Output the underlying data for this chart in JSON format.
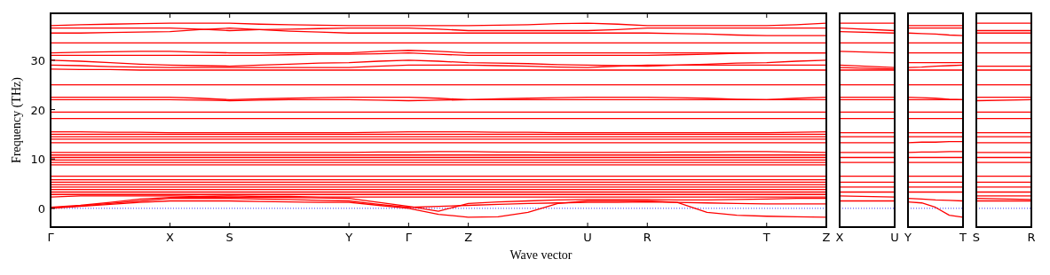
{
  "chart_data": [
    {
      "type": "line",
      "xlabel": "Wave vector",
      "ylabel": "Frequency (THz)",
      "ylim": [
        -3.8,
        39.5
      ],
      "yticks": [
        0,
        10,
        20,
        30
      ],
      "categories": [
        "Γ",
        null,
        null,
        null,
        "X",
        null,
        "S",
        null,
        null,
        null,
        "Y",
        null,
        "Γ",
        null,
        "Z",
        null,
        null,
        null,
        "U",
        null,
        "R",
        null,
        null,
        null,
        "T",
        null,
        "Z"
      ],
      "ref_lines": [
        {
          "axis": "y",
          "value": 0,
          "color": "#0000ff",
          "line_style": "dotted"
        }
      ],
      "series": [
        {
          "color": "#ff0000",
          "values": [
            37,
            37.2,
            37.3,
            37.4,
            37.5,
            37.5,
            37.5,
            37.3,
            37.2,
            37.1,
            37,
            37,
            37,
            37,
            37,
            37.1,
            37.2,
            37.4,
            37.5,
            37.3,
            37,
            37,
            37,
            37,
            37,
            37.2,
            37.5
          ]
        },
        {
          "color": "#ff0000",
          "values": [
            36.5,
            36.5,
            36.5,
            36.5,
            36.5,
            36.3,
            36,
            36.2,
            36.3,
            36.4,
            36.5,
            36.5,
            36.5,
            36.3,
            36,
            36,
            36,
            36,
            36,
            36.2,
            36.5,
            36.5,
            36.5,
            36.5,
            36.5,
            36.5,
            36.5
          ]
        },
        {
          "color": "#ff0000",
          "values": [
            35.5,
            35.5,
            35.6,
            35.7,
            35.8,
            36.2,
            36.5,
            36.2,
            35.9,
            35.7,
            35.5,
            35.5,
            35.5,
            35.5,
            35.5,
            35.5,
            35.5,
            35.5,
            35.5,
            35.5,
            35.5,
            35.4,
            35.3,
            35.1,
            35,
            35,
            35
          ]
        },
        {
          "color": "#ff0000",
          "values": [
            33.5,
            33.5,
            33.5,
            33.5,
            33.5,
            33.5,
            33.5,
            33.5,
            33.5,
            33.5,
            33.5,
            33.5,
            33.5,
            33.5,
            33.5,
            33.5,
            33.5,
            33.5,
            33.5,
            33.5,
            33.5,
            33.5,
            33.5,
            33.5,
            33.5,
            33.5,
            33.5
          ]
        },
        {
          "color": "#ff0000",
          "values": [
            31.5,
            31.6,
            31.7,
            31.8,
            31.8,
            31.6,
            31.5,
            31.5,
            31.5,
            31.5,
            31.5,
            31.8,
            32,
            31.8,
            31.5,
            31.5,
            31.5,
            31.5,
            31.5,
            31.5,
            31.5,
            31.5,
            31.5,
            31.5,
            31.5,
            31.5,
            31.5
          ]
        },
        {
          "color": "#ff0000",
          "values": [
            31,
            31,
            31,
            31,
            31,
            31,
            31,
            31,
            31.1,
            31.2,
            31.2,
            31.3,
            31.5,
            31.2,
            31,
            31,
            31,
            31,
            31,
            31,
            31,
            31.1,
            31.2,
            31.4,
            31.5,
            31.5,
            31.5
          ]
        },
        {
          "color": "#ff0000",
          "values": [
            30,
            29.8,
            29.5,
            29.2,
            29,
            28.9,
            28.8,
            29,
            29.2,
            29.4,
            29.5,
            29.8,
            30,
            29.8,
            29.5,
            29.4,
            29.3,
            29.1,
            29,
            28.9,
            28.8,
            29,
            29.2,
            29.4,
            29.5,
            29.8,
            30
          ]
        },
        {
          "color": "#ff0000",
          "values": [
            29,
            28.9,
            28.7,
            28.6,
            28.5,
            28.5,
            28.5,
            28.5,
            28.5,
            28.5,
            28.5,
            28.8,
            29,
            29,
            29,
            28.9,
            28.8,
            28.6,
            28.5,
            28.8,
            29,
            29,
            29,
            29,
            29,
            29,
            29
          ]
        },
        {
          "color": "#ff0000",
          "values": [
            28.2,
            28.1,
            28.1,
            28,
            28,
            28,
            28,
            28,
            28,
            28,
            28,
            28,
            28,
            28,
            28,
            28,
            28,
            28,
            28,
            28,
            28,
            28,
            28,
            28,
            28,
            28,
            28
          ]
        },
        {
          "color": "#ff0000",
          "values": [
            25,
            25,
            25,
            25,
            25,
            25,
            25,
            25,
            25,
            25,
            25,
            25,
            25,
            25,
            25,
            25,
            25,
            25,
            25,
            25,
            25,
            25,
            25,
            25,
            25,
            25,
            25
          ]
        },
        {
          "color": "#ff0000",
          "values": [
            22.5,
            22.5,
            22.5,
            22.5,
            22.5,
            22.3,
            22,
            22.2,
            22.3,
            22.4,
            22.5,
            22.5,
            22.5,
            22.3,
            22,
            22.2,
            22.3,
            22.4,
            22.5,
            22.5,
            22.5,
            22.4,
            22.3,
            22.1,
            22,
            22.3,
            22.5
          ]
        },
        {
          "color": "#ff0000",
          "values": [
            22,
            22,
            22,
            22,
            22,
            21.9,
            21.8,
            21.9,
            22,
            22,
            22,
            21.9,
            21.8,
            21.9,
            22,
            22,
            22,
            22,
            22,
            22,
            22,
            22,
            22,
            22,
            22,
            22,
            22
          ]
        },
        {
          "color": "#ff0000",
          "values": [
            19.5,
            19.5,
            19.5,
            19.5,
            19.5,
            19.5,
            19.5,
            19.5,
            19.5,
            19.5,
            19.5,
            19.5,
            19.5,
            19.5,
            19.5,
            19.5,
            19.5,
            19.5,
            19.5,
            19.5,
            19.5,
            19.5,
            19.5,
            19.5,
            19.5,
            19.5,
            19.5
          ]
        },
        {
          "color": "#ff0000",
          "values": [
            18.2,
            18.2,
            18.2,
            18.2,
            18.2,
            18.2,
            18.2,
            18.2,
            18.2,
            18.2,
            18.2,
            18.2,
            18.2,
            18.2,
            18.2,
            18.2,
            18.2,
            18.2,
            18.2,
            18.2,
            18.2,
            18.2,
            18.2,
            18.2,
            18.2,
            18.2,
            18.2
          ]
        },
        {
          "color": "#ff0000",
          "values": [
            15.5,
            15.5,
            15.4,
            15.4,
            15.3,
            15.3,
            15.3,
            15.3,
            15.3,
            15.3,
            15.3,
            15.4,
            15.5,
            15.5,
            15.5,
            15.4,
            15.4,
            15.3,
            15.3,
            15.3,
            15.3,
            15.3,
            15.3,
            15.3,
            15.3,
            15.4,
            15.5
          ]
        },
        {
          "color": "#ff0000",
          "values": [
            15,
            15,
            15,
            15,
            15,
            15,
            15,
            15,
            15,
            15,
            15,
            15,
            15,
            15,
            15,
            15,
            15,
            15,
            15,
            15,
            15,
            15,
            15,
            15,
            15,
            15,
            15
          ]
        },
        {
          "color": "#ff0000",
          "values": [
            14.5,
            14.5,
            14.5,
            14.5,
            14.5,
            14.5,
            14.5,
            14.5,
            14.5,
            14.5,
            14.5,
            14.5,
            14.5,
            14.5,
            14.5,
            14.5,
            14.5,
            14.5,
            14.5,
            14.5,
            14.5,
            14.5,
            14.5,
            14.5,
            14.5,
            14.5,
            14.5
          ]
        },
        {
          "color": "#ff0000",
          "values": [
            14,
            14,
            14,
            14,
            14,
            14,
            14,
            14,
            14,
            14,
            14,
            14,
            14,
            14,
            14,
            14,
            14,
            14,
            14,
            14,
            14,
            14,
            14,
            14,
            14,
            14,
            14
          ]
        },
        {
          "color": "#ff0000",
          "values": [
            13.3,
            13.3,
            13.3,
            13.3,
            13.3,
            13.3,
            13.3,
            13.3,
            13.3,
            13.3,
            13.3,
            13.3,
            13.3,
            13.3,
            13.3,
            13.3,
            13.3,
            13.3,
            13.3,
            13.3,
            13.3,
            13.3,
            13.3,
            13.3,
            13.3,
            13.3,
            13.3
          ]
        },
        {
          "color": "#ff0000",
          "values": [
            11.3,
            11.3,
            11.3,
            11.3,
            11.3,
            11.3,
            11.3,
            11.3,
            11.3,
            11.3,
            11.3,
            11.4,
            11.4,
            11.5,
            11.5,
            11.4,
            11.4,
            11.3,
            11.3,
            11.3,
            11.3,
            11.4,
            11.4,
            11.5,
            11.5,
            11.4,
            11.3
          ]
        },
        {
          "color": "#ff0000",
          "values": [
            10.8,
            10.8,
            10.8,
            10.8,
            10.8,
            10.8,
            10.8,
            10.8,
            10.8,
            10.8,
            10.8,
            10.8,
            10.8,
            10.8,
            10.8,
            10.8,
            10.8,
            10.8,
            10.8,
            10.8,
            10.8,
            10.8,
            10.8,
            10.8,
            10.8,
            10.8,
            10.8
          ]
        },
        {
          "color": "#ff0000",
          "values": [
            10.3,
            10.3,
            10.3,
            10.3,
            10.3,
            10.3,
            10.3,
            10.3,
            10.3,
            10.3,
            10.3,
            10.3,
            10.3,
            10.3,
            10.3,
            10.3,
            10.3,
            10.3,
            10.3,
            10.3,
            10.3,
            10.3,
            10.3,
            10.3,
            10.3,
            10.3,
            10.3
          ]
        },
        {
          "color": "#ff0000",
          "values": [
            9.8,
            9.8,
            9.8,
            9.8,
            9.8,
            9.8,
            9.8,
            9.8,
            9.8,
            9.8,
            9.8,
            9.8,
            9.8,
            9.8,
            9.8,
            9.8,
            9.8,
            9.8,
            9.8,
            9.8,
            9.8,
            9.8,
            9.8,
            9.8,
            9.8,
            9.8,
            9.8
          ]
        },
        {
          "color": "#ff0000",
          "values": [
            9.3,
            9.3,
            9.3,
            9.3,
            9.3,
            9.3,
            9.3,
            9.3,
            9.3,
            9.3,
            9.3,
            9.3,
            9.3,
            9.3,
            9.3,
            9.3,
            9.3,
            9.3,
            9.3,
            9.3,
            9.3,
            9.3,
            9.3,
            9.3,
            9.3,
            9.3,
            9.3
          ]
        },
        {
          "color": "#ff0000",
          "values": [
            8.8,
            8.8,
            8.8,
            8.8,
            8.8,
            8.8,
            8.8,
            8.8,
            8.8,
            8.8,
            8.8,
            8.8,
            8.8,
            8.8,
            8.8,
            8.8,
            8.8,
            8.8,
            8.8,
            8.8,
            8.8,
            8.8,
            8.8,
            8.8,
            8.8,
            8.8,
            8.8
          ]
        },
        {
          "color": "#ff0000",
          "values": [
            6.5,
            6.5,
            6.5,
            6.5,
            6.5,
            6.5,
            6.5,
            6.5,
            6.5,
            6.5,
            6.5,
            6.5,
            6.5,
            6.5,
            6.5,
            6.5,
            6.5,
            6.5,
            6.5,
            6.5,
            6.5,
            6.5,
            6.5,
            6.5,
            6.5,
            6.5,
            6.5
          ]
        },
        {
          "color": "#ff0000",
          "values": [
            5.8,
            5.8,
            5.8,
            5.8,
            5.8,
            5.8,
            5.8,
            5.8,
            5.8,
            5.8,
            5.8,
            5.8,
            5.8,
            5.8,
            5.8,
            5.8,
            5.8,
            5.8,
            5.8,
            5.8,
            5.8,
            5.8,
            5.8,
            5.8,
            5.8,
            5.8,
            5.8
          ]
        },
        {
          "color": "#ff0000",
          "values": [
            5.3,
            5.3,
            5.3,
            5.3,
            5.3,
            5.3,
            5.3,
            5.3,
            5.3,
            5.3,
            5.3,
            5.3,
            5.3,
            5.3,
            5.3,
            5.3,
            5.3,
            5.3,
            5.3,
            5.3,
            5.3,
            5.3,
            5.3,
            5.3,
            5.3,
            5.3,
            5.3
          ]
        },
        {
          "color": "#ff0000",
          "values": [
            4.8,
            4.8,
            4.8,
            4.8,
            4.8,
            4.8,
            4.8,
            4.8,
            4.8,
            4.8,
            4.8,
            4.8,
            4.8,
            4.8,
            4.8,
            4.8,
            4.8,
            4.8,
            4.8,
            4.8,
            4.8,
            4.8,
            4.8,
            4.8,
            4.8,
            4.8,
            4.8
          ]
        },
        {
          "color": "#ff0000",
          "values": [
            4.3,
            4.3,
            4.3,
            4.3,
            4.3,
            4.3,
            4.3,
            4.3,
            4.3,
            4.3,
            4.3,
            4.3,
            4.3,
            4.3,
            4.3,
            4.3,
            4.3,
            4.3,
            4.3,
            4.3,
            4.3,
            4.3,
            4.3,
            4.3,
            4.3,
            4.3,
            4.3
          ]
        },
        {
          "color": "#ff0000",
          "values": [
            3.8,
            3.8,
            3.8,
            3.8,
            3.8,
            3.8,
            3.8,
            3.8,
            3.8,
            3.8,
            3.8,
            3.8,
            3.8,
            3.8,
            3.8,
            3.8,
            3.8,
            3.8,
            3.8,
            3.8,
            3.8,
            3.8,
            3.8,
            3.8,
            3.8,
            3.8,
            3.8
          ]
        },
        {
          "color": "#ff0000",
          "values": [
            3.3,
            3.3,
            3.3,
            3.3,
            3.3,
            3.3,
            3.3,
            3.3,
            3.3,
            3.3,
            3.3,
            3.3,
            3.3,
            3.3,
            3.3,
            3.3,
            3.3,
            3.3,
            3.3,
            3.3,
            3.3,
            3.3,
            3.3,
            3.3,
            3.3,
            3.3,
            3.3
          ]
        },
        {
          "color": "#ff0000",
          "values": [
            2.8,
            2.8,
            2.8,
            2.8,
            2.8,
            2.8,
            2.8,
            2.8,
            2.8,
            2.8,
            2.8,
            2.8,
            2.8,
            2.8,
            2.8,
            2.8,
            2.8,
            2.8,
            2.8,
            2.8,
            2.8,
            2.8,
            2.8,
            2.8,
            2.8,
            2.8,
            2.8
          ]
        },
        {
          "color": "#ff0000",
          "values": [
            0,
            0.4,
            0.8,
            1.2,
            1.5,
            1.5,
            1.5,
            1.4,
            1.3,
            1.2,
            1.2,
            0.6,
            0,
            -1.2,
            -1.8,
            -1.7,
            -0.8,
            1,
            1.5,
            1.5,
            1.5,
            1.2,
            -0.8,
            -1.4,
            -1.6,
            -1.7,
            -1.8
          ]
        },
        {
          "color": "#ff0000",
          "values": [
            2.3,
            2.5,
            2.5,
            2.5,
            2.5,
            2.4,
            2.5,
            2.4,
            2.4,
            2.3,
            2.3,
            2.3,
            2.3,
            2.3,
            2.3,
            2.3,
            2.3,
            2.3,
            2.3,
            2.3,
            2.3,
            2.3,
            2.3,
            2.3,
            2.3,
            2.3,
            2.3
          ]
        },
        {
          "color": "#ff0000",
          "values": [
            0.1,
            0.5,
            1,
            1.5,
            2,
            2,
            2,
            1.9,
            1.8,
            1.6,
            1.5,
            0.8,
            0.2,
            0.4,
            0.6,
            0.8,
            1,
            1.1,
            1.2,
            1.2,
            1.3,
            1.2,
            1.1,
            1,
            0.9,
            0.9,
            0.9
          ]
        },
        {
          "color": "#ff0000",
          "values": [
            0.2,
            0.6,
            1.2,
            1.9,
            2.2,
            2.2,
            2.2,
            2.2,
            2.2,
            2.1,
            2,
            1.2,
            0.4,
            -0.6,
            1,
            1.3,
            1.5,
            1.7,
            1.8,
            1.8,
            1.8,
            1.7,
            1.7,
            1.8,
            1.9,
            2,
            2
          ]
        }
      ]
    },
    {
      "type": "line",
      "ylim": [
        -3.8,
        39.5
      ],
      "tick_labels": "x",
      "categories": [
        "X",
        "U"
      ],
      "ref_lines": [
        {
          "axis": "y",
          "value": 0,
          "color": "#0000ff",
          "line_style": "dotted"
        }
      ],
      "series": [
        {
          "color": "#ff0000",
          "values": [
            37.5,
            37.5
          ]
        },
        {
          "color": "#ff0000",
          "values": [
            36.5,
            36
          ]
        },
        {
          "color": "#ff0000",
          "values": [
            35.8,
            35.5
          ]
        },
        {
          "color": "#ff0000",
          "values": [
            33.5,
            33.5
          ]
        },
        {
          "color": "#ff0000",
          "values": [
            31.8,
            31.5
          ]
        },
        {
          "color": "#ff0000",
          "values": [
            29,
            28.5
          ]
        },
        {
          "color": "#ff0000",
          "values": [
            28.5,
            28.2
          ]
        },
        {
          "color": "#ff0000",
          "values": [
            28,
            28
          ]
        },
        {
          "color": "#ff0000",
          "values": [
            25,
            25
          ]
        },
        {
          "color": "#ff0000",
          "values": [
            22.5,
            22.5
          ]
        },
        {
          "color": "#ff0000",
          "values": [
            22,
            22
          ]
        },
        {
          "color": "#ff0000",
          "values": [
            19.5,
            19.5
          ]
        },
        {
          "color": "#ff0000",
          "values": [
            18.2,
            18.2
          ]
        },
        {
          "color": "#ff0000",
          "values": [
            15.3,
            15.3
          ]
        },
        {
          "color": "#ff0000",
          "values": [
            14.5,
            14.5
          ]
        },
        {
          "color": "#ff0000",
          "values": [
            13.3,
            13.3
          ]
        },
        {
          "color": "#ff0000",
          "values": [
            11.3,
            11.3
          ]
        },
        {
          "color": "#ff0000",
          "values": [
            10.3,
            10.3
          ]
        },
        {
          "color": "#ff0000",
          "values": [
            9.3,
            9.3
          ]
        },
        {
          "color": "#ff0000",
          "values": [
            6.5,
            6.5
          ]
        },
        {
          "color": "#ff0000",
          "values": [
            5.3,
            5.3
          ]
        },
        {
          "color": "#ff0000",
          "values": [
            4.3,
            4.3
          ]
        },
        {
          "color": "#ff0000",
          "values": [
            3.3,
            3.3
          ]
        },
        {
          "color": "#ff0000",
          "values": [
            2.5,
            2.3
          ]
        },
        {
          "color": "#ff0000",
          "values": [
            1.5,
            1.5
          ]
        }
      ]
    },
    {
      "type": "line",
      "ylim": [
        -3.8,
        39.5
      ],
      "tick_labels": "x",
      "categories": [
        "Y",
        null,
        null,
        null,
        "T"
      ],
      "ref_lines": [
        {
          "axis": "y",
          "value": 0,
          "color": "#0000ff",
          "line_style": "dotted"
        }
      ],
      "series": [
        {
          "color": "#ff0000",
          "values": [
            37,
            37,
            37,
            37,
            37
          ]
        },
        {
          "color": "#ff0000",
          "values": [
            36.5,
            36.5,
            36.5,
            36.5,
            36.5
          ]
        },
        {
          "color": "#ff0000",
          "values": [
            35.5,
            35.4,
            35.3,
            35.1,
            35
          ]
        },
        {
          "color": "#ff0000",
          "values": [
            33.5,
            33.5,
            33.5,
            33.5,
            33.5
          ]
        },
        {
          "color": "#ff0000",
          "values": [
            31.5,
            31.5,
            31.5,
            31.5,
            31.5
          ]
        },
        {
          "color": "#ff0000",
          "values": [
            29.5,
            29.5,
            29.5,
            29.5,
            29.5
          ]
        },
        {
          "color": "#ff0000",
          "values": [
            28.5,
            28.6,
            28.8,
            28.9,
            29
          ]
        },
        {
          "color": "#ff0000",
          "values": [
            28,
            28,
            28,
            28,
            28
          ]
        },
        {
          "color": "#ff0000",
          "values": [
            25,
            25,
            25,
            25,
            25
          ]
        },
        {
          "color": "#ff0000",
          "values": [
            22.5,
            22.4,
            22.3,
            22.1,
            22
          ]
        },
        {
          "color": "#ff0000",
          "values": [
            22,
            22,
            22,
            22,
            22
          ]
        },
        {
          "color": "#ff0000",
          "values": [
            19.5,
            19.5,
            19.5,
            19.5,
            19.5
          ]
        },
        {
          "color": "#ff0000",
          "values": [
            18.2,
            18.2,
            18.2,
            18.2,
            18.2
          ]
        },
        {
          "color": "#ff0000",
          "values": [
            15.3,
            15.3,
            15.3,
            15.3,
            15.3
          ]
        },
        {
          "color": "#ff0000",
          "values": [
            14.5,
            14.5,
            14.5,
            14.5,
            14.5
          ]
        },
        {
          "color": "#ff0000",
          "values": [
            13.3,
            13.4,
            13.4,
            13.5,
            13.5
          ]
        },
        {
          "color": "#ff0000",
          "values": [
            11.3,
            11.4,
            11.4,
            11.5,
            11.5
          ]
        },
        {
          "color": "#ff0000",
          "values": [
            10.3,
            10.3,
            10.3,
            10.3,
            10.3
          ]
        },
        {
          "color": "#ff0000",
          "values": [
            9.3,
            9.3,
            9.3,
            9.3,
            9.3
          ]
        },
        {
          "color": "#ff0000",
          "values": [
            6.5,
            6.5,
            6.5,
            6.5,
            6.5
          ]
        },
        {
          "color": "#ff0000",
          "values": [
            5.3,
            5.3,
            5.3,
            5.3,
            5.3
          ]
        },
        {
          "color": "#ff0000",
          "values": [
            4.3,
            4.3,
            4.3,
            4.3,
            4.3
          ]
        },
        {
          "color": "#ff0000",
          "values": [
            3.3,
            3.3,
            3.3,
            3.3,
            3.3
          ]
        },
        {
          "color": "#ff0000",
          "values": [
            2,
            1.9,
            1.7,
            1.6,
            1.5
          ]
        },
        {
          "color": "#ff0000",
          "values": [
            1.3,
            1.1,
            0.2,
            -1.4,
            -1.8
          ]
        }
      ]
    },
    {
      "type": "line",
      "ylim": [
        -3.8,
        39.5
      ],
      "tick_labels": "x",
      "categories": [
        "S",
        "R"
      ],
      "ref_lines": [
        {
          "axis": "y",
          "value": 0,
          "color": "#0000ff",
          "line_style": "dotted"
        }
      ],
      "series": [
        {
          "color": "#ff0000",
          "values": [
            37.5,
            37.5
          ]
        },
        {
          "color": "#ff0000",
          "values": [
            36,
            36
          ]
        },
        {
          "color": "#ff0000",
          "values": [
            35.5,
            35.5
          ]
        },
        {
          "color": "#ff0000",
          "values": [
            33.5,
            33.5
          ]
        },
        {
          "color": "#ff0000",
          "values": [
            31.5,
            31.5
          ]
        },
        {
          "color": "#ff0000",
          "values": [
            28.8,
            28.8
          ]
        },
        {
          "color": "#ff0000",
          "values": [
            28,
            28
          ]
        },
        {
          "color": "#ff0000",
          "values": [
            25,
            25
          ]
        },
        {
          "color": "#ff0000",
          "values": [
            22.5,
            22.5
          ]
        },
        {
          "color": "#ff0000",
          "values": [
            21.8,
            22
          ]
        },
        {
          "color": "#ff0000",
          "values": [
            19.5,
            19.5
          ]
        },
        {
          "color": "#ff0000",
          "values": [
            18.2,
            18.2
          ]
        },
        {
          "color": "#ff0000",
          "values": [
            15.3,
            15.3
          ]
        },
        {
          "color": "#ff0000",
          "values": [
            14.5,
            14.5
          ]
        },
        {
          "color": "#ff0000",
          "values": [
            13.3,
            13.3
          ]
        },
        {
          "color": "#ff0000",
          "values": [
            11.3,
            11.3
          ]
        },
        {
          "color": "#ff0000",
          "values": [
            10.3,
            10.3
          ]
        },
        {
          "color": "#ff0000",
          "values": [
            9.3,
            9.3
          ]
        },
        {
          "color": "#ff0000",
          "values": [
            6.5,
            6.5
          ]
        },
        {
          "color": "#ff0000",
          "values": [
            5.3,
            5.3
          ]
        },
        {
          "color": "#ff0000",
          "values": [
            4.3,
            4.3
          ]
        },
        {
          "color": "#ff0000",
          "values": [
            3.3,
            3.3
          ]
        },
        {
          "color": "#ff0000",
          "values": [
            2.5,
            2.5
          ]
        },
        {
          "color": "#ff0000",
          "values": [
            2,
            1.8
          ]
        },
        {
          "color": "#ff0000",
          "values": [
            1.5,
            1.5
          ]
        }
      ]
    }
  ]
}
